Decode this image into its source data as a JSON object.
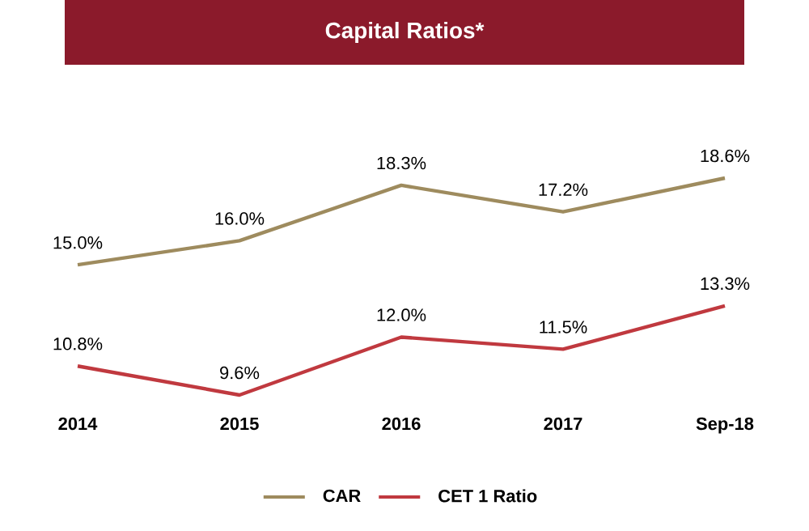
{
  "chart_data": {
    "type": "line",
    "title": "Capital Ratios*",
    "categories": [
      "2014",
      "2015",
      "2016",
      "2017",
      "Sep-18"
    ],
    "legend": "bottom",
    "marker": "none",
    "line_style": "solid",
    "series": [
      {
        "name": "CAR",
        "color": "#9e8b5e",
        "values": [
          15.0,
          16.0,
          18.3,
          17.2,
          18.6
        ],
        "value_labels": [
          "15.0%",
          "16.0%",
          "18.3%",
          "17.2%",
          "18.6%"
        ]
      },
      {
        "name": "CET 1 Ratio",
        "color": "#c0393f",
        "values": [
          10.8,
          9.6,
          12.0,
          11.5,
          13.3
        ],
        "value_labels": [
          "10.8%",
          "9.6%",
          "12.0%",
          "11.5%",
          "13.3%"
        ]
      }
    ]
  }
}
